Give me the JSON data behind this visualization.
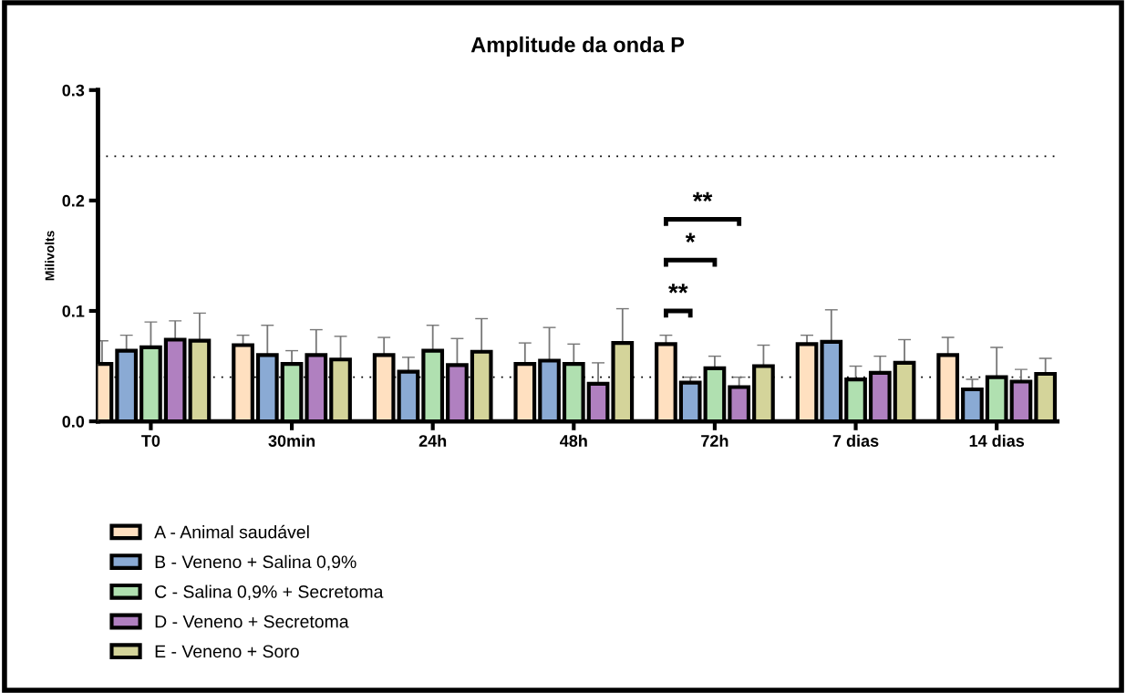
{
  "chart_data": {
    "type": "bar",
    "title": "Amplitude da onda P",
    "ylabel": "Milivolts",
    "categories": [
      "T0",
      "30min",
      "24h",
      "48h",
      "72h",
      "7 dias",
      "14 dias"
    ],
    "series": [
      {
        "name": "A - Animal saudável",
        "color": "#ffe0c0",
        "values": [
          0.052,
          0.069,
          0.06,
          0.052,
          0.07,
          0.07,
          0.06
        ],
        "errors": [
          [
            0.052,
            0.073
          ],
          [
            0.069,
            0.078
          ],
          [
            0.06,
            0.076
          ],
          [
            0.052,
            0.071
          ],
          [
            0.07,
            0.078
          ],
          [
            0.07,
            0.078
          ],
          [
            0.06,
            0.076
          ]
        ]
      },
      {
        "name": "B - Veneno + Salina 0,9%",
        "color": "#8aaad4",
        "values": [
          0.064,
          0.06,
          0.045,
          0.055,
          0.035,
          0.072,
          0.029
        ],
        "errors": [
          [
            0.064,
            0.078
          ],
          [
            0.06,
            0.087
          ],
          [
            0.045,
            0.058
          ],
          [
            0.055,
            0.085
          ],
          [
            0.035,
            0.04
          ],
          [
            0.072,
            0.101
          ],
          [
            0.029,
            0.038
          ]
        ]
      },
      {
        "name": "C - Salina 0,9% + Secretoma",
        "color": "#b0e0b0",
        "values": [
          0.067,
          0.052,
          0.064,
          0.052,
          0.048,
          0.038,
          0.04
        ],
        "errors": [
          [
            0.067,
            0.09
          ],
          [
            0.052,
            0.064
          ],
          [
            0.064,
            0.087
          ],
          [
            0.052,
            0.07
          ],
          [
            0.048,
            0.059
          ],
          [
            0.038,
            0.05
          ],
          [
            0.04,
            0.067
          ]
        ]
      },
      {
        "name": "D - Veneno + Secretoma",
        "color": "#b080c0",
        "values": [
          0.074,
          0.06,
          0.051,
          0.034,
          0.031,
          0.044,
          0.036
        ],
        "errors": [
          [
            0.074,
            0.091
          ],
          [
            0.06,
            0.083
          ],
          [
            0.051,
            0.075
          ],
          [
            0.034,
            0.053
          ],
          [
            0.031,
            0.04
          ],
          [
            0.044,
            0.059
          ],
          [
            0.036,
            0.047
          ]
        ]
      },
      {
        "name": "E - Veneno + Soro",
        "color": "#d4d49a",
        "values": [
          0.073,
          0.056,
          0.063,
          0.071,
          0.05,
          0.053,
          0.043
        ],
        "errors": [
          [
            0.073,
            0.098
          ],
          [
            0.056,
            0.077
          ],
          [
            0.063,
            0.093
          ],
          [
            0.071,
            0.102
          ],
          [
            0.05,
            0.069
          ],
          [
            0.053,
            0.074
          ],
          [
            0.043,
            0.057
          ]
        ]
      }
    ],
    "ylim": [
      0,
      0.3
    ],
    "yticks": [
      {
        "value": 0,
        "label": "0.0"
      },
      0.1,
      0.2,
      0.3
    ],
    "ref_lines": [
      {
        "axis": "y",
        "value": 0.24,
        "label": null,
        "line_style": "dotted"
      },
      {
        "axis": "y",
        "value": 0.04,
        "label": null,
        "line_style": "dotted"
      }
    ],
    "annotations": [
      "**",
      "*",
      "**"
    ],
    "grid": false,
    "legend": "bottom"
  }
}
